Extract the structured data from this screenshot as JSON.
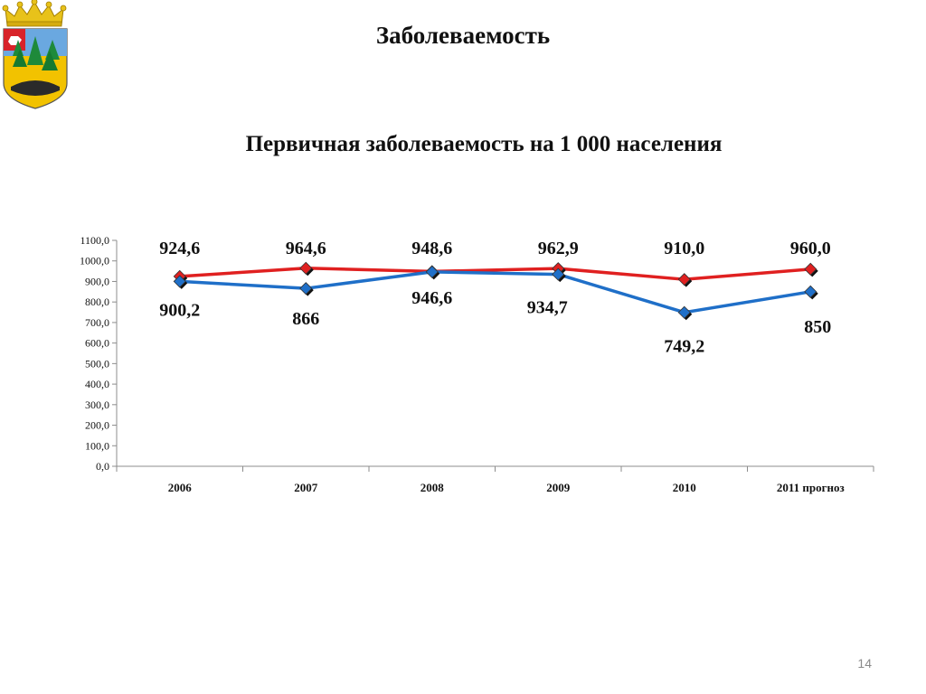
{
  "slide": {
    "title": "Заболеваемость",
    "page_number": "14"
  },
  "chart_data": {
    "type": "line",
    "title": "Первичная заболеваемость на 1 000 населения",
    "categories": [
      "2006",
      "2007",
      "2008",
      "2009",
      "2010",
      "2011 прогноз"
    ],
    "series": [
      {
        "color": "#e02020",
        "values": [
          924.6,
          964.6,
          948.6,
          962.9,
          910.0,
          960.0
        ],
        "labels": [
          "924,6",
          "964,6",
          "948,6",
          "962,9",
          "910,0",
          "960,0"
        ]
      },
      {
        "color": "#1f6fc8",
        "values": [
          900.2,
          866,
          946.6,
          934.7,
          749.2,
          850
        ],
        "labels": [
          "900,2",
          "866",
          "946,6",
          "934,7",
          "749,2",
          "850"
        ]
      }
    ],
    "ylim": [
      0,
      1100
    ],
    "yticks": [
      "0,0",
      "100,0",
      "200,0",
      "300,0",
      "400,0",
      "500,0",
      "600,0",
      "700,0",
      "800,0",
      "900,0",
      "1000,0",
      "1100,0"
    ],
    "gridlines": false,
    "legend": "none"
  }
}
